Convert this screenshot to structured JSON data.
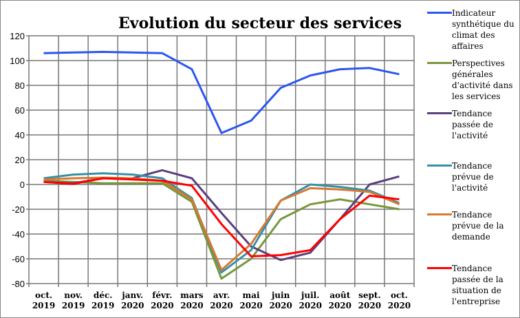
{
  "chart_data": {
    "type": "line",
    "title": "Evolution du secteur des services",
    "categories": [
      "oct. 2019",
      "nov. 2019",
      "déc. 2019",
      "janv. 2020",
      "févr. 2020",
      "mars 2020",
      "avr. 2020",
      "mai 2020",
      "juin 2020",
      "juil. 2020",
      "août 2020",
      "sept. 2020",
      "oct. 2020"
    ],
    "ylim": [
      -80,
      120
    ],
    "yticks": [
      -80,
      -60,
      -40,
      -20,
      0,
      20,
      40,
      60,
      80,
      100,
      120
    ],
    "grid": true,
    "legend_placement": "right",
    "series": [
      {
        "name": "Indicateur synthétique du climat des affaires",
        "color": "#2b55f0",
        "values": [
          106,
          106.5,
          107,
          106.5,
          106,
          93,
          41.5,
          51.5,
          78,
          88,
          93,
          94,
          89
        ]
      },
      {
        "name": "Perspectives générales d'activité dans les services",
        "color": "#77973a",
        "values": [
          3,
          2,
          1,
          1,
          1,
          -14,
          -76,
          -60,
          -28,
          -16,
          -12,
          -16,
          -20
        ]
      },
      {
        "name": "Tendance passée de l'activité",
        "color": "#5b3f7e",
        "values": [
          2,
          1,
          5,
          5,
          11.5,
          5,
          -23,
          -50,
          -61,
          -55,
          -28,
          0,
          6.5
        ]
      },
      {
        "name": "Tendance prévue de l'activité",
        "color": "#3490a8",
        "values": [
          5,
          8,
          9,
          8,
          5,
          -11,
          -71,
          -53,
          -13,
          0,
          -2,
          -5,
          -15
        ]
      },
      {
        "name": "Tendance prévue de la demande",
        "color": "#d7782f",
        "values": [
          4,
          5,
          5.5,
          5,
          3,
          -12,
          -69,
          -48,
          -13,
          -3,
          -4,
          -6,
          -16
        ]
      },
      {
        "name": "Tendance passée de la situation de l'entreprise",
        "color": "#ff0000",
        "values": [
          2,
          0.5,
          5,
          4,
          3,
          -1,
          -32,
          -58,
          -57,
          -53,
          -28,
          -9,
          -12
        ]
      }
    ]
  }
}
